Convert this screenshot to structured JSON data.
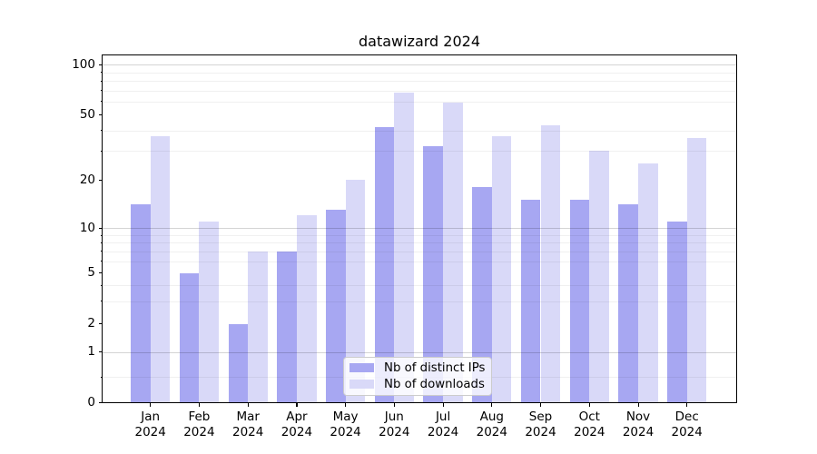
{
  "chart_data": {
    "type": "bar",
    "title": "datawizard 2024",
    "categories": [
      "Jan 2024",
      "Feb 2024",
      "Mar 2024",
      "Apr 2024",
      "May 2024",
      "Jun 2024",
      "Jul 2024",
      "Aug 2024",
      "Sep 2024",
      "Oct 2024",
      "Nov 2024",
      "Dec 2024"
    ],
    "series": [
      {
        "name": "Nb of distinct IPs",
        "color": "#a7a7f2",
        "values": [
          14,
          5,
          2,
          7,
          13,
          42,
          32,
          18,
          15,
          15,
          14,
          11
        ]
      },
      {
        "name": "Nb of downloads",
        "color": "#d9d9f8",
        "values": [
          37,
          11,
          7,
          12,
          20,
          68,
          59,
          37,
          43,
          30,
          25,
          36
        ]
      }
    ],
    "xlabel": "",
    "ylabel": "",
    "y_axis": {
      "scale": "symlog",
      "tick_values": [
        100,
        50,
        20,
        10,
        5,
        2,
        1,
        0
      ],
      "tick_labels": [
        "100",
        "50",
        "20",
        "10",
        "5",
        "2",
        "1",
        "0"
      ],
      "minor_gridline_values": [
        0.5,
        3,
        4,
        6,
        7,
        8,
        9,
        30,
        40,
        60,
        70,
        80,
        90
      ],
      "major_gridline_values": [
        1,
        10,
        100
      ],
      "ylim": [
        0,
        113
      ]
    },
    "legend": {
      "location": "lower center",
      "entries": [
        "Nb of distinct IPs",
        "Nb of downloads"
      ]
    },
    "grid": true,
    "colors": {
      "bar_distinct_ips": "#a7a7f2",
      "bar_downloads": "#d9d9f8",
      "grid_major": "#d4d4d4",
      "grid_minor": "#f0f0f0",
      "spine": "#000000",
      "background": "#ffffff",
      "legend_border": "#cccccc"
    }
  }
}
